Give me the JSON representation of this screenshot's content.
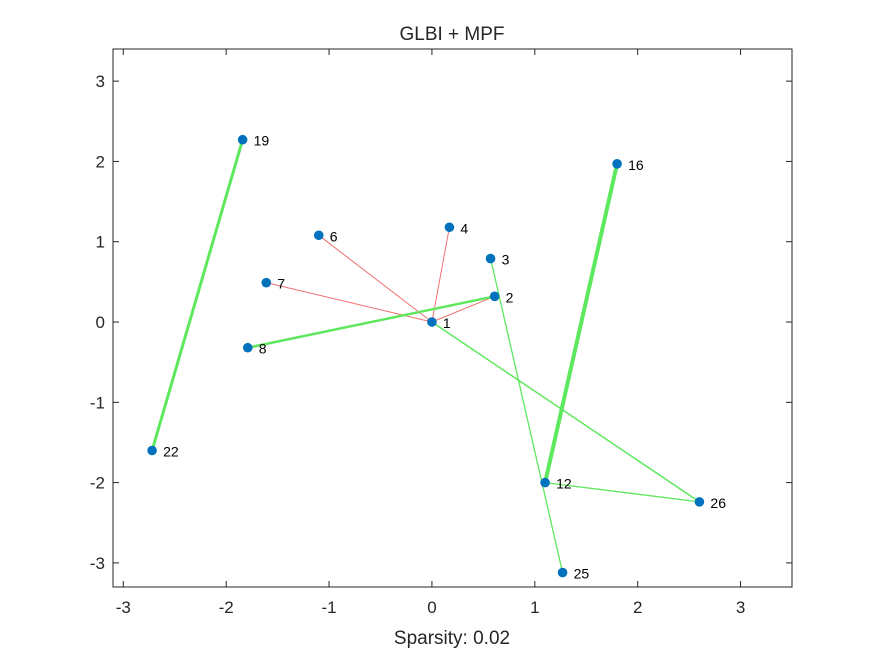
{
  "chart_data": {
    "type": "scatter",
    "title": "GLBI + MPF",
    "xlabel": "Sparsity: 0.02",
    "ylabel": "",
    "xlim": [
      -3.1,
      3.5
    ],
    "ylim": [
      -3.3,
      3.4
    ],
    "xticks": [
      -3,
      -2,
      -1,
      0,
      1,
      2,
      3
    ],
    "yticks": [
      3,
      2,
      1,
      0,
      -1,
      -2,
      -3
    ],
    "grid": false,
    "legend": "none",
    "node_color": "#0072BD",
    "colors": {
      "positive": "#5EE85E",
      "negative": "#F07070"
    },
    "nodes": [
      {
        "id": "1",
        "x": 0.0,
        "y": 0.0
      },
      {
        "id": "2",
        "x": 0.61,
        "y": 0.32
      },
      {
        "id": "3",
        "x": 0.57,
        "y": 0.79
      },
      {
        "id": "4",
        "x": 0.17,
        "y": 1.18
      },
      {
        "id": "6",
        "x": -1.1,
        "y": 1.08
      },
      {
        "id": "7",
        "x": -1.61,
        "y": 0.49
      },
      {
        "id": "8",
        "x": -1.79,
        "y": -0.32
      },
      {
        "id": "12",
        "x": 1.1,
        "y": -2.0
      },
      {
        "id": "16",
        "x": 1.8,
        "y": 1.97
      },
      {
        "id": "19",
        "x": -1.84,
        "y": 2.27
      },
      {
        "id": "22",
        "x": -2.72,
        "y": -1.6
      },
      {
        "id": "25",
        "x": 1.27,
        "y": -3.12
      },
      {
        "id": "26",
        "x": 2.6,
        "y": -2.24
      }
    ],
    "edges": [
      {
        "source": "1",
        "target": "4",
        "sign": "negative",
        "weight": 1
      },
      {
        "source": "1",
        "target": "6",
        "sign": "negative",
        "weight": 1
      },
      {
        "source": "1",
        "target": "7",
        "sign": "negative",
        "weight": 1
      },
      {
        "source": "1",
        "target": "2",
        "sign": "negative",
        "weight": 1
      },
      {
        "source": "8",
        "target": "2",
        "sign": "positive",
        "weight": 2.5
      },
      {
        "source": "19",
        "target": "22",
        "sign": "positive",
        "weight": 3
      },
      {
        "source": "16",
        "target": "12",
        "sign": "positive",
        "weight": 4
      },
      {
        "source": "3",
        "target": "25",
        "sign": "positive",
        "weight": 1.3
      },
      {
        "source": "1",
        "target": "26",
        "sign": "positive",
        "weight": 1.5
      },
      {
        "source": "12",
        "target": "26",
        "sign": "positive",
        "weight": 1.3
      }
    ]
  }
}
